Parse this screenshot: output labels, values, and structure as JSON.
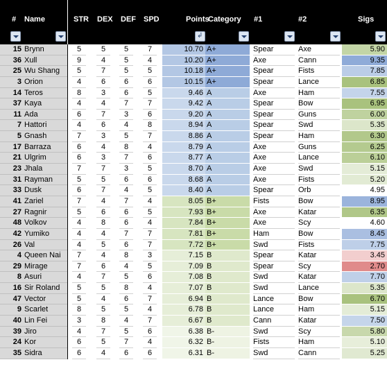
{
  "columns": {
    "rank": "#",
    "name": "Name",
    "str": "STR",
    "dex": "DEX",
    "def": "DEF",
    "spd": "SPD",
    "points": "Points",
    "category": "Category",
    "w1": "#1",
    "w2": "#2",
    "sigs": "Sigs"
  },
  "colors": {
    "header_bg": "#000000",
    "rank_bg": "#d9d9d9",
    "category_a_plus": "#8eaad7",
    "category_a": "#b9cde6",
    "category_b_plus": "#c9dba8",
    "category_b": "#dfe9cc",
    "category_b_minus": "#eef3e3",
    "sig_high": "#a9c27e",
    "sig_low": "#e08b8b"
  },
  "rows": [
    {
      "rank": "15",
      "name": "Brynn",
      "str": "5",
      "dex": "5",
      "def": "5",
      "spd": "7",
      "points": "10.70",
      "category": "A+",
      "w1": "Spear",
      "w2": "Axe",
      "sigs": "5.90"
    },
    {
      "rank": "36",
      "name": "Xull",
      "str": "9",
      "dex": "4",
      "def": "5",
      "spd": "4",
      "points": "10.20",
      "category": "A+",
      "w1": "Axe",
      "w2": "Cann",
      "sigs": "9.35"
    },
    {
      "rank": "25",
      "name": "Wu Shang",
      "str": "5",
      "dex": "7",
      "def": "5",
      "spd": "5",
      "points": "10.18",
      "category": "A+",
      "w1": "Spear",
      "w2": "Fists",
      "sigs": "7.85"
    },
    {
      "rank": "3",
      "name": "Orion",
      "str": "4",
      "dex": "6",
      "def": "6",
      "spd": "6",
      "points": "10.15",
      "category": "A+",
      "w1": "Spear",
      "w2": "Lance",
      "sigs": "6.85"
    },
    {
      "rank": "14",
      "name": "Teros",
      "str": "8",
      "dex": "3",
      "def": "6",
      "spd": "5",
      "points": "9.46",
      "category": "A",
      "w1": "Axe",
      "w2": "Ham",
      "sigs": "7.55"
    },
    {
      "rank": "37",
      "name": "Kaya",
      "str": "4",
      "dex": "4",
      "def": "7",
      "spd": "7",
      "points": "9.42",
      "category": "A",
      "w1": "Spear",
      "w2": "Bow",
      "sigs": "6.95"
    },
    {
      "rank": "11",
      "name": "Ada",
      "str": "6",
      "dex": "7",
      "def": "3",
      "spd": "6",
      "points": "9.20",
      "category": "A",
      "w1": "Spear",
      "w2": "Guns",
      "sigs": "6.00"
    },
    {
      "rank": "7",
      "name": "Hattori",
      "str": "4",
      "dex": "6",
      "def": "4",
      "spd": "8",
      "points": "8.94",
      "category": "A",
      "w1": "Spear",
      "w2": "Swd",
      "sigs": "5.35"
    },
    {
      "rank": "5",
      "name": "Gnash",
      "str": "7",
      "dex": "3",
      "def": "5",
      "spd": "7",
      "points": "8.86",
      "category": "A",
      "w1": "Spear",
      "w2": "Ham",
      "sigs": "6.30"
    },
    {
      "rank": "17",
      "name": "Barraza",
      "str": "6",
      "dex": "4",
      "def": "8",
      "spd": "4",
      "points": "8.79",
      "category": "A",
      "w1": "Axe",
      "w2": "Guns",
      "sigs": "6.25"
    },
    {
      "rank": "21",
      "name": "Ulgrim",
      "str": "6",
      "dex": "3",
      "def": "7",
      "spd": "6",
      "points": "8.77",
      "category": "A",
      "w1": "Axe",
      "w2": "Lance",
      "sigs": "6.10"
    },
    {
      "rank": "23",
      "name": "Jhala",
      "str": "7",
      "dex": "7",
      "def": "3",
      "spd": "5",
      "points": "8.70",
      "category": "A",
      "w1": "Axe",
      "w2": "Swd",
      "sigs": "5.15"
    },
    {
      "rank": "31",
      "name": "Rayman",
      "str": "5",
      "dex": "5",
      "def": "6",
      "spd": "6",
      "points": "8.68",
      "category": "A",
      "w1": "Axe",
      "w2": "Fists",
      "sigs": "5.20"
    },
    {
      "rank": "33",
      "name": "Dusk",
      "str": "6",
      "dex": "7",
      "def": "4",
      "spd": "5",
      "points": "8.40",
      "category": "A",
      "w1": "Spear",
      "w2": "Orb",
      "sigs": "4.95"
    },
    {
      "rank": "41",
      "name": "Zariel",
      "str": "7",
      "dex": "4",
      "def": "7",
      "spd": "4",
      "points": "8.05",
      "category": "B+",
      "w1": "Fists",
      "w2": "Bow",
      "sigs": "8.95"
    },
    {
      "rank": "27",
      "name": "Ragnir",
      "str": "5",
      "dex": "6",
      "def": "6",
      "spd": "5",
      "points": "7.93",
      "category": "B+",
      "w1": "Axe",
      "w2": "Katar",
      "sigs": "6.35"
    },
    {
      "rank": "48",
      "name": "Volkov",
      "str": "4",
      "dex": "8",
      "def": "6",
      "spd": "4",
      "points": "7.84",
      "category": "B+",
      "w1": "Axe",
      "w2": "Scy",
      "sigs": "4.60"
    },
    {
      "rank": "42",
      "name": "Yumiko",
      "str": "4",
      "dex": "4",
      "def": "7",
      "spd": "7",
      "points": "7.81",
      "category": "B+",
      "w1": "Ham",
      "w2": "Bow",
      "sigs": "8.45"
    },
    {
      "rank": "26",
      "name": "Val",
      "str": "4",
      "dex": "5",
      "def": "6",
      "spd": "7",
      "points": "7.72",
      "category": "B+",
      "w1": "Swd",
      "w2": "Fists",
      "sigs": "7.75"
    },
    {
      "rank": "4",
      "name": "Queen Nai",
      "str": "7",
      "dex": "4",
      "def": "8",
      "spd": "3",
      "points": "7.15",
      "category": "B",
      "w1": "Spear",
      "w2": "Katar",
      "sigs": "3.45"
    },
    {
      "rank": "29",
      "name": "Mirage",
      "str": "7",
      "dex": "6",
      "def": "4",
      "spd": "5",
      "points": "7.09",
      "category": "B",
      "w1": "Spear",
      "w2": "Scy",
      "sigs": "2.70"
    },
    {
      "rank": "8",
      "name": "Asuri",
      "str": "4",
      "dex": "7",
      "def": "5",
      "spd": "6",
      "points": "7.08",
      "category": "B",
      "w1": "Swd",
      "w2": "Katar",
      "sigs": "7.70"
    },
    {
      "rank": "16",
      "name": "Sir Roland",
      "str": "5",
      "dex": "5",
      "def": "8",
      "spd": "4",
      "points": "7.07",
      "category": "B",
      "w1": "Swd",
      "w2": "Lance",
      "sigs": "5.35"
    },
    {
      "rank": "47",
      "name": "Vector",
      "str": "5",
      "dex": "4",
      "def": "6",
      "spd": "7",
      "points": "6.94",
      "category": "B",
      "w1": "Lance",
      "w2": "Bow",
      "sigs": "6.70"
    },
    {
      "rank": "9",
      "name": "Scarlet",
      "str": "8",
      "dex": "5",
      "def": "5",
      "spd": "4",
      "points": "6.78",
      "category": "B",
      "w1": "Lance",
      "w2": "Ham",
      "sigs": "5.15"
    },
    {
      "rank": "40",
      "name": "Lin Fei",
      "str": "3",
      "dex": "8",
      "def": "4",
      "spd": "7",
      "points": "6.67",
      "category": "B",
      "w1": "Cann",
      "w2": "Katar",
      "sigs": "7.50"
    },
    {
      "rank": "39",
      "name": "Jiro",
      "str": "4",
      "dex": "7",
      "def": "5",
      "spd": "6",
      "points": "6.38",
      "category": "B-",
      "w1": "Swd",
      "w2": "Scy",
      "sigs": "5.80"
    },
    {
      "rank": "24",
      "name": "Kor",
      "str": "6",
      "dex": "5",
      "def": "7",
      "spd": "4",
      "points": "6.32",
      "category": "B-",
      "w1": "Fists",
      "w2": "Ham",
      "sigs": "5.10"
    },
    {
      "rank": "35",
      "name": "Sidra",
      "str": "6",
      "dex": "4",
      "def": "6",
      "spd": "6",
      "points": "6.31",
      "category": "B-",
      "w1": "Swd",
      "w2": "Cann",
      "sigs": "5.25"
    }
  ]
}
